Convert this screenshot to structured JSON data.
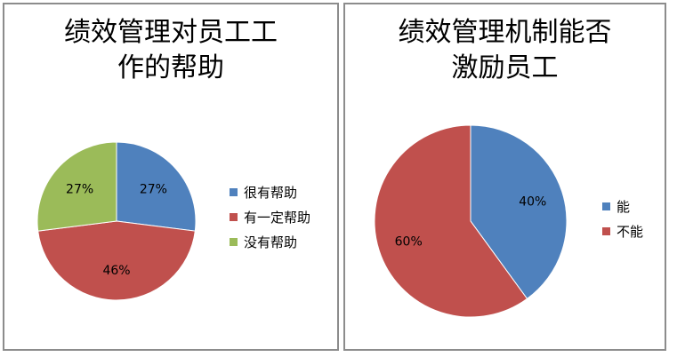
{
  "chart_data": [
    {
      "type": "pie",
      "title": "绩效管理对员工工作的帮助",
      "title_lines": [
        "绩效管理对员工工",
        "作的帮助"
      ],
      "legend_position": "right",
      "slices": [
        {
          "name": "很有帮助",
          "value": 27,
          "label": "27%",
          "color": "#4f81bd"
        },
        {
          "name": "有一定帮助",
          "value": 46,
          "label": "46%",
          "color": "#c0504d"
        },
        {
          "name": "没有帮助",
          "value": 27,
          "label": "27%",
          "color": "#9bbb59"
        }
      ]
    },
    {
      "type": "pie",
      "title": "绩效管理机制能否激励员工",
      "title_lines": [
        "绩效管理机制能否",
        "激励员工"
      ],
      "legend_position": "right",
      "slices": [
        {
          "name": "能",
          "value": 40,
          "label": "40%",
          "color": "#4f81bd"
        },
        {
          "name": "不能",
          "value": 60,
          "label": "60%",
          "color": "#c0504d"
        }
      ]
    }
  ]
}
